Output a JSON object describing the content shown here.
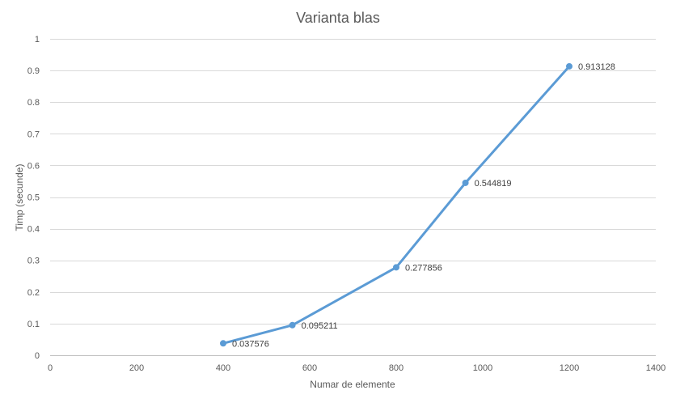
{
  "chart_data": {
    "type": "line",
    "title": "Varianta blas",
    "xlabel": "Numar de elemente",
    "ylabel": "Timp (secunde)",
    "xlim": [
      0,
      1400
    ],
    "ylim": [
      0,
      1
    ],
    "x_ticks": [
      0,
      200,
      400,
      600,
      800,
      1000,
      1200,
      1400
    ],
    "y_ticks": [
      0,
      0.1,
      0.2,
      0.3,
      0.4,
      0.5,
      0.6,
      0.7,
      0.8,
      0.9,
      1
    ],
    "x_tick_labels": [
      "0",
      "200",
      "400",
      "600",
      "800",
      "1000",
      "1200",
      "1400"
    ],
    "y_tick_labels": [
      "0",
      "0.1",
      "0.2",
      "0.3",
      "0.4",
      "0.5",
      "0.6",
      "0.7",
      "0.8",
      "0.9",
      "1"
    ],
    "grid": true,
    "legend": "none",
    "series": [
      {
        "x": [
          400,
          560,
          800,
          960,
          1200
        ],
        "y": [
          0.037576,
          0.095211,
          0.277856,
          0.544819,
          0.913128
        ],
        "labels": [
          "0.037576",
          "0.095211",
          "0.277856",
          "0.544819",
          "0.913128"
        ],
        "color": "#5B9BD5"
      }
    ]
  }
}
